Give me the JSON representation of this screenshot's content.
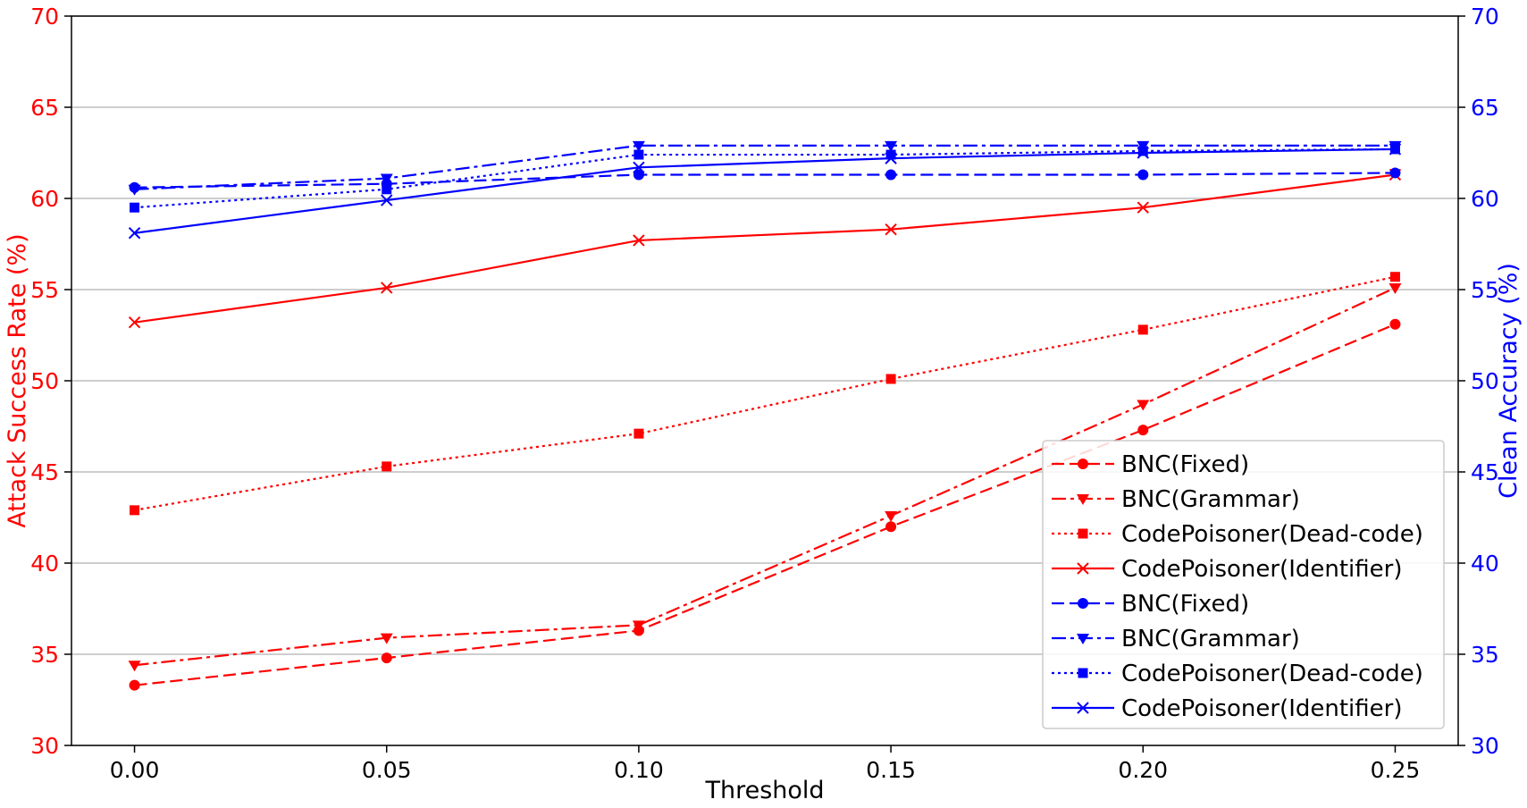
{
  "chart_data": {
    "type": "line",
    "title": "",
    "xlabel": "Threshold",
    "ylabel_left": "Attack Success Rate (%)",
    "ylabel_right": "Clean Accuracy (%)",
    "x": [
      0.0,
      0.05,
      0.1,
      0.15,
      0.2,
      0.25
    ],
    "x_tick_labels": [
      "0.00",
      "0.05",
      "0.10",
      "0.15",
      "0.20",
      "0.25"
    ],
    "ylim_left": [
      30,
      70
    ],
    "ylim_right": [
      30,
      70
    ],
    "y_ticks": [
      30,
      35,
      40,
      45,
      50,
      55,
      60,
      65,
      70
    ],
    "y_tick_labels": [
      "30",
      "35",
      "40",
      "45",
      "50",
      "55",
      "60",
      "65",
      "70"
    ],
    "grid": "horizontal",
    "legend_position": "lower-right",
    "colors": {
      "left_axis": "#ff0000",
      "right_axis": "#0000ff"
    },
    "series": [
      {
        "name": "BNC(Fixed)",
        "axis": "left",
        "color": "#ff0000",
        "linestyle": "dashed",
        "marker": "circle",
        "values": [
          33.3,
          34.8,
          36.3,
          42.0,
          47.3,
          53.1
        ]
      },
      {
        "name": "BNC(Grammar)",
        "axis": "left",
        "color": "#ff0000",
        "linestyle": "dashdot",
        "marker": "triangle-down",
        "values": [
          34.4,
          35.9,
          36.6,
          42.6,
          48.7,
          55.1
        ]
      },
      {
        "name": "CodePoisoner(Dead-code)",
        "axis": "left",
        "color": "#ff0000",
        "linestyle": "dotted",
        "marker": "square",
        "values": [
          42.9,
          45.3,
          47.1,
          50.1,
          52.8,
          55.7
        ]
      },
      {
        "name": "CodePoisoner(Identifier)",
        "axis": "left",
        "color": "#ff0000",
        "linestyle": "solid",
        "marker": "x",
        "values": [
          53.2,
          55.1,
          57.7,
          58.3,
          59.5,
          61.3
        ]
      },
      {
        "name": "BNC(Fixed)",
        "axis": "right",
        "color": "#0000ff",
        "linestyle": "dashed",
        "marker": "circle",
        "values": [
          60.6,
          60.8,
          61.3,
          61.3,
          61.3,
          61.4
        ]
      },
      {
        "name": "BNC(Grammar)",
        "axis": "right",
        "color": "#0000ff",
        "linestyle": "dashdot",
        "marker": "triangle-down",
        "values": [
          60.5,
          61.1,
          62.9,
          62.9,
          62.9,
          62.9
        ]
      },
      {
        "name": "CodePoisoner(Dead-code)",
        "axis": "right",
        "color": "#0000ff",
        "linestyle": "dotted",
        "marker": "square",
        "values": [
          59.5,
          60.5,
          62.4,
          62.4,
          62.6,
          62.7
        ]
      },
      {
        "name": "CodePoisoner(Identifier)",
        "axis": "right",
        "color": "#0000ff",
        "linestyle": "solid",
        "marker": "x",
        "values": [
          58.1,
          59.9,
          61.7,
          62.2,
          62.5,
          62.7
        ]
      }
    ]
  }
}
